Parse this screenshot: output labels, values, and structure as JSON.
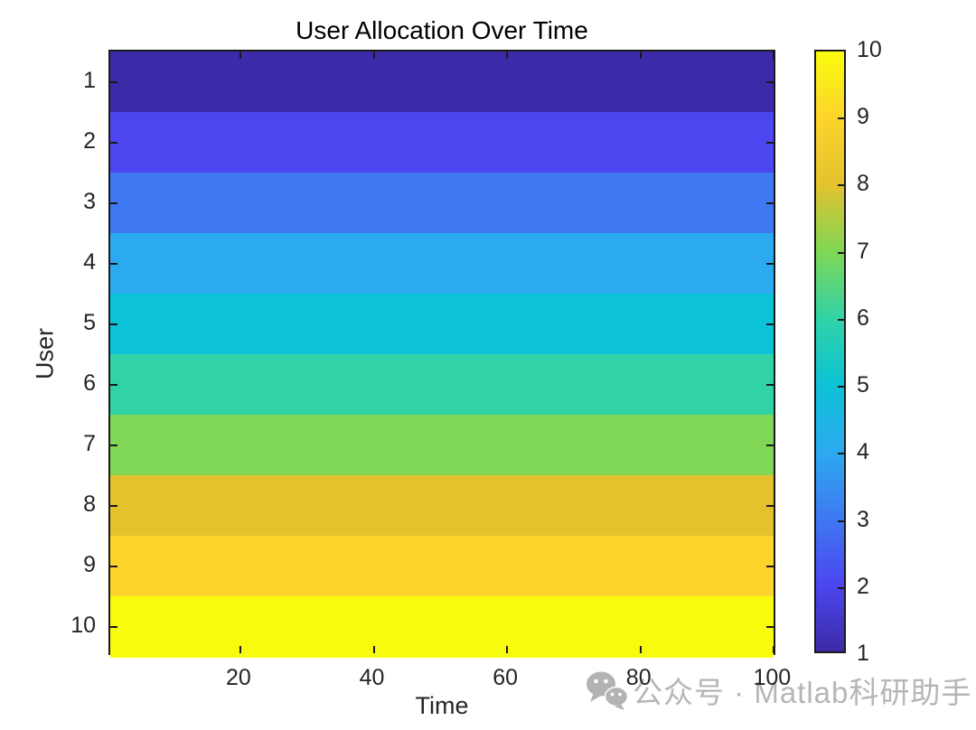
{
  "watermark": {
    "text": "公众号 · Matlab科研助手",
    "icon": "wechat-icon",
    "color": "#b6b6b6"
  },
  "axis": {
    "tick_color": "#252525",
    "line_color": "#1a1a1a"
  },
  "chart_data": {
    "type": "heatmap",
    "title": "User Allocation Over Time",
    "xlabel": "Time",
    "ylabel": "User",
    "x_range": [
      1,
      100
    ],
    "x_ticks": [
      20,
      40,
      60,
      80,
      100
    ],
    "y_categories": [
      1,
      2,
      3,
      4,
      5,
      6,
      7,
      8,
      9,
      10
    ],
    "note": "Each user row has a constant allocation value across time t = 1..100, equal to the user index",
    "rows": [
      {
        "user": 1,
        "allocation": 1,
        "color": "#3c2ba8"
      },
      {
        "user": 2,
        "allocation": 2,
        "color": "#4b46f0"
      },
      {
        "user": 3,
        "allocation": 3,
        "color": "#3e79f2"
      },
      {
        "user": 4,
        "allocation": 4,
        "color": "#2caaf0"
      },
      {
        "user": 5,
        "allocation": 5,
        "color": "#0cc2d6"
      },
      {
        "user": 6,
        "allocation": 6,
        "color": "#31d3a6"
      },
      {
        "user": 7,
        "allocation": 7,
        "color": "#80d755"
      },
      {
        "user": 8,
        "allocation": 8,
        "color": "#e3c22d"
      },
      {
        "user": 9,
        "allocation": 9,
        "color": "#fcd42b"
      },
      {
        "user": 10,
        "allocation": 10,
        "color": "#f9fb0e"
      }
    ],
    "colorbar": {
      "min": 1,
      "max": 10,
      "tick_labels": [
        1,
        2,
        3,
        4,
        5,
        6,
        7,
        8,
        9,
        10
      ]
    },
    "legend": "colorbar-right",
    "grid": false
  }
}
